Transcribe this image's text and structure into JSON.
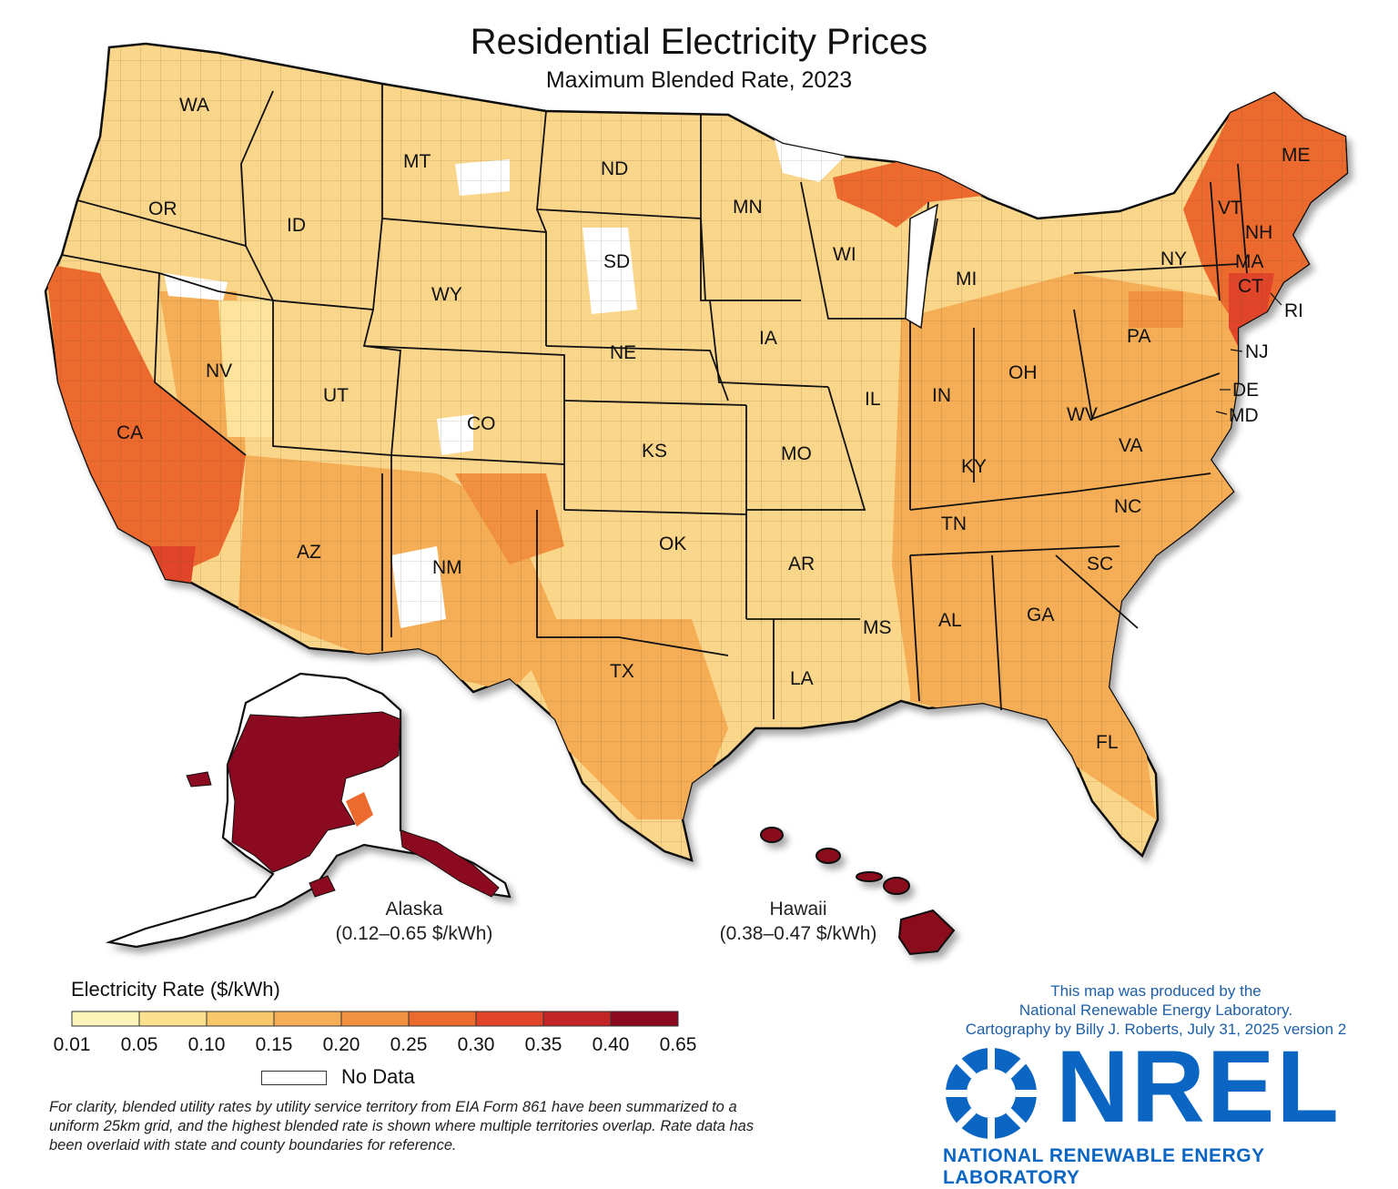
{
  "title": "Residential Electricity Prices",
  "subtitle": "Maximum Blended Rate, 2023",
  "state_labels": [
    "WA",
    "OR",
    "CA",
    "NV",
    "ID",
    "MT",
    "WY",
    "UT",
    "AZ",
    "CO",
    "NM",
    "ND",
    "SD",
    "NE",
    "KS",
    "OK",
    "TX",
    "MN",
    "IA",
    "MO",
    "AR",
    "LA",
    "WI",
    "IL",
    "MI",
    "IN",
    "OH",
    "KY",
    "TN",
    "MS",
    "AL",
    "GA",
    "FL",
    "SC",
    "NC",
    "VA",
    "WV",
    "PA",
    "NY",
    "VT",
    "NH",
    "ME",
    "MA",
    "CT",
    "RI",
    "NJ",
    "DE",
    "MD"
  ],
  "insets": {
    "alaska": {
      "name": "Alaska",
      "range": "(0.12–0.65 $/kWh)"
    },
    "hawaii": {
      "name": "Hawaii",
      "range": "(0.38–0.47 $/kWh)"
    }
  },
  "legend": {
    "title": "Electricity Rate ($/kWh)",
    "breaks": [
      "0.01",
      "0.05",
      "0.10",
      "0.15",
      "0.20",
      "0.25",
      "0.30",
      "0.35",
      "0.40",
      "0.65"
    ],
    "colors": [
      "#fdf3b8",
      "#fbe08f",
      "#f8c86a",
      "#f5ae55",
      "#f1913f",
      "#ec6a2e",
      "#e0452a",
      "#c32426",
      "#8b0a1f"
    ],
    "no_data_label": "No Data",
    "no_data_color": "#ffffff"
  },
  "footnote": "For clarity, blended utility rates by utility service territory from EIA Form 861 have been summarized to a uniform 25km grid, and the highest blended rate is shown where multiple territories overlap. Rate data has been overlaid with state and county boundaries for reference.",
  "credit": {
    "line1": "This map was produced by the",
    "line2": "National Renewable Energy Laboratory.",
    "line3": "Cartography by Billy J. Roberts,   July 31, 2025 version 2"
  },
  "logo": {
    "wordmark": "NREL",
    "full_name": "NATIONAL RENEWABLE ENERGY LABORATORY",
    "color": "#0b66c3"
  }
}
